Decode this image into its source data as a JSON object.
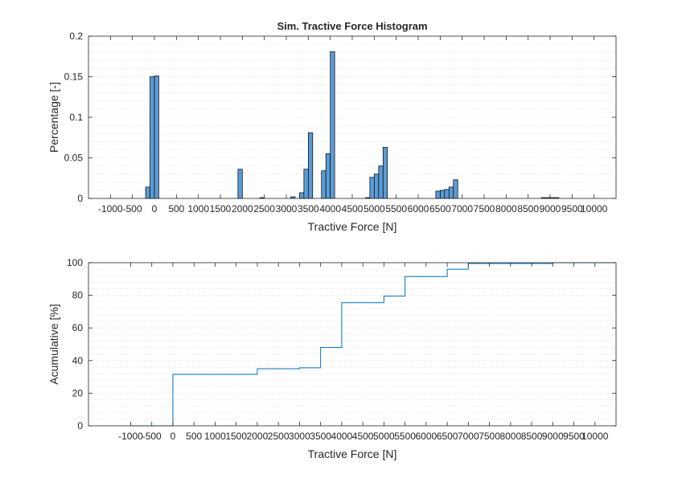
{
  "chart_data": [
    {
      "type": "bar",
      "title": "Sim. Tractive Force Histogram",
      "xlabel": "Tractive Force [N]",
      "ylabel": "Percentage [-]",
      "xlim": [
        -1500,
        10500
      ],
      "ylim": [
        0,
        0.2
      ],
      "grid": "minor dotted",
      "x_ticks": [
        -1000,
        -500,
        0,
        500,
        1000,
        1500,
        2000,
        2500,
        3000,
        3500,
        4000,
        4500,
        5000,
        5500,
        6000,
        6500,
        7000,
        7500,
        8000,
        8500,
        9000,
        9500,
        10000
      ],
      "x_tick_labels": [
        "-1000",
        "-500",
        "0",
        "500",
        "1000",
        "1500",
        "2000",
        "2500",
        "3000",
        "3500",
        "4000",
        "4500",
        "5000",
        "5500",
        "6000",
        "6500",
        "7000",
        "7500",
        "8000",
        "8500",
        "9000",
        "9500",
        "10000"
      ],
      "y_ticks": [
        0,
        0.05,
        0.1,
        0.15,
        0.2
      ],
      "y_tick_labels": [
        "0",
        "0.05",
        "0.1",
        "0.15",
        "0.2"
      ],
      "bar_width": 100,
      "bars": [
        {
          "x": -150,
          "value": 0.014
        },
        {
          "x": -50,
          "value": 0.15
        },
        {
          "x": 50,
          "value": 0.151
        },
        {
          "x": 1950,
          "value": 0.036
        },
        {
          "x": 2450,
          "value": 0.001
        },
        {
          "x": 3150,
          "value": 0.002
        },
        {
          "x": 3350,
          "value": 0.007
        },
        {
          "x": 3450,
          "value": 0.036
        },
        {
          "x": 3550,
          "value": 0.081
        },
        {
          "x": 3850,
          "value": 0.034
        },
        {
          "x": 3950,
          "value": 0.055
        },
        {
          "x": 4050,
          "value": 0.181
        },
        {
          "x": 4850,
          "value": 0.001
        },
        {
          "x": 4950,
          "value": 0.026
        },
        {
          "x": 5050,
          "value": 0.03
        },
        {
          "x": 5150,
          "value": 0.04
        },
        {
          "x": 5250,
          "value": 0.063
        },
        {
          "x": 6450,
          "value": 0.009
        },
        {
          "x": 6550,
          "value": 0.01
        },
        {
          "x": 6650,
          "value": 0.011
        },
        {
          "x": 6750,
          "value": 0.014
        },
        {
          "x": 6850,
          "value": 0.023
        },
        {
          "x": 8850,
          "value": 0.001
        },
        {
          "x": 8950,
          "value": 0.001
        },
        {
          "x": 9050,
          "value": 0.001
        },
        {
          "x": 9150,
          "value": 0.001
        }
      ],
      "colors": {
        "bar_fill": "#5b9bd5",
        "bar_edge": "#000000",
        "axis": "#262626",
        "grid": "#d9d9d9"
      }
    },
    {
      "type": "line",
      "title": "",
      "xlabel": "Tractive Force [N]",
      "ylabel": "Acumulative [%]",
      "xlim": [
        -2000,
        10500
      ],
      "ylim": [
        0,
        100
      ],
      "grid": "minor dotted",
      "x_ticks": [
        -1000,
        -500,
        0,
        500,
        1000,
        1500,
        2000,
        2500,
        3000,
        3500,
        4000,
        4500,
        5000,
        5500,
        6000,
        6500,
        7000,
        7500,
        8000,
        8500,
        9000,
        9500,
        10000
      ],
      "x_tick_labels": [
        "-1000",
        "-500",
        "0",
        "500",
        "1000",
        "1500",
        "2000",
        "2500",
        "3000",
        "3500",
        "4000",
        "4500",
        "5000",
        "5500",
        "6000",
        "6500",
        "7000",
        "7500",
        "8000",
        "8500",
        "9000",
        "9500",
        "10000"
      ],
      "y_ticks": [
        0,
        20,
        40,
        60,
        80,
        100
      ],
      "y_tick_labels": [
        "0",
        "20",
        "40",
        "60",
        "80",
        "100"
      ],
      "step": "post",
      "series": [
        {
          "x": [
            -1000,
            0,
            2000,
            2500,
            3000,
            3500,
            4000,
            4500,
            5000,
            5500,
            6000,
            6500,
            7000,
            7500,
            8000,
            8500,
            9000,
            9500,
            10000,
            10500
          ],
          "values": [
            0,
            31.5,
            35,
            35,
            35.5,
            48,
            75.5,
            75.5,
            79.5,
            91.5,
            91.5,
            96,
            99.5,
            99.5,
            99.5,
            99.5,
            100,
            100,
            100,
            100
          ]
        }
      ],
      "colors": {
        "line": "#0072bd",
        "axis": "#262626",
        "grid": "#d9d9d9"
      }
    }
  ]
}
